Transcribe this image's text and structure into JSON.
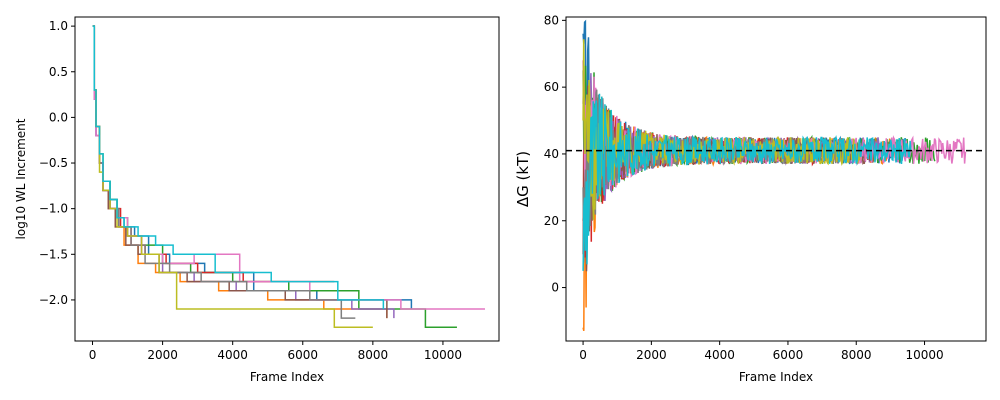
{
  "chart_data": [
    {
      "type": "line",
      "title": "",
      "xlabel": "Frame Index",
      "ylabel": "log10 WL Increment",
      "xlim": [
        -500,
        11600
      ],
      "ylim": [
        -2.45,
        1.1
      ],
      "xticks": [
        0,
        2000,
        4000,
        6000,
        8000,
        10000
      ],
      "yticks": [
        1.0,
        0.5,
        0.0,
        -0.5,
        -1.0,
        -1.5,
        -2.0
      ],
      "ytick_labels": [
        "1.0",
        "0.5",
        "0.0",
        "−0.5",
        "−1.0",
        "−1.5",
        "−2.0"
      ],
      "grid": false,
      "legend": "none",
      "series_style": "step",
      "series": [
        {
          "color": "#1f77b4",
          "x": [
            0,
            50,
            100,
            200,
            300,
            500,
            700,
            900,
            1200,
            1600,
            2200,
            3200,
            4600,
            6400,
            9100
          ],
          "y": [
            1.0,
            0.2,
            -0.2,
            -0.5,
            -0.7,
            -0.9,
            -1.1,
            -1.2,
            -1.3,
            -1.5,
            -1.6,
            -1.7,
            -1.9,
            -2.0,
            -2.1
          ]
        },
        {
          "color": "#ff7f0e",
          "x": [
            0,
            50,
            100,
            200,
            300,
            450,
            650,
            900,
            1300,
            1800,
            2500,
            3600,
            5000,
            6600,
            8400
          ],
          "y": [
            1.0,
            0.3,
            -0.1,
            -0.5,
            -0.8,
            -1.0,
            -1.2,
            -1.4,
            -1.6,
            -1.7,
            -1.8,
            -1.9,
            -2.0,
            -2.1,
            -2.2
          ]
        },
        {
          "color": "#2ca02c",
          "x": [
            0,
            50,
            100,
            200,
            300,
            500,
            700,
            1000,
            1400,
            2000,
            2800,
            4000,
            5600,
            7600,
            9500,
            10400
          ],
          "y": [
            1.0,
            0.3,
            -0.1,
            -0.4,
            -0.7,
            -0.9,
            -1.1,
            -1.3,
            -1.4,
            -1.6,
            -1.7,
            -1.8,
            -1.9,
            -2.1,
            -2.3,
            -2.3
          ]
        },
        {
          "color": "#d62728",
          "x": [
            0,
            50,
            100,
            200,
            300,
            500,
            800,
            1100,
            1500,
            2100,
            3000,
            4300,
            6900
          ],
          "y": [
            1.0,
            0.3,
            -0.1,
            -0.5,
            -0.8,
            -1.0,
            -1.2,
            -1.4,
            -1.5,
            -1.6,
            -1.7,
            -1.8,
            -1.8
          ]
        },
        {
          "color": "#9467bd",
          "x": [
            0,
            50,
            100,
            200,
            300,
            500,
            750,
            1000,
            1400,
            2000,
            2900,
            4100,
            5800,
            7400,
            8600
          ],
          "y": [
            1.0,
            0.2,
            -0.2,
            -0.5,
            -0.8,
            -1.0,
            -1.2,
            -1.3,
            -1.5,
            -1.7,
            -1.8,
            -1.9,
            -2.0,
            -2.1,
            -2.2
          ]
        },
        {
          "color": "#8c564b",
          "x": [
            0,
            50,
            100,
            200,
            300,
            450,
            650,
            950,
            1300,
            1900,
            2700,
            3900,
            5500,
            7700,
            8400
          ],
          "y": [
            1.0,
            0.3,
            -0.1,
            -0.5,
            -0.8,
            -1.0,
            -1.2,
            -1.4,
            -1.5,
            -1.7,
            -1.8,
            -1.9,
            -2.0,
            -2.0,
            -2.2
          ]
        },
        {
          "color": "#e377c2",
          "x": [
            0,
            50,
            100,
            200,
            300,
            500,
            700,
            1000,
            1400,
            2000,
            2900,
            4200,
            6200,
            8800,
            11200
          ],
          "y": [
            1.0,
            0.2,
            -0.2,
            -0.5,
            -0.8,
            -1.0,
            -1.1,
            -1.3,
            -1.5,
            -1.6,
            -1.5,
            -1.8,
            -2.0,
            -2.1,
            -2.1
          ]
        },
        {
          "color": "#7f7f7f",
          "x": [
            0,
            50,
            100,
            200,
            300,
            500,
            750,
            1100,
            1500,
            2200,
            3100,
            4400,
            6200,
            7100,
            7500
          ],
          "y": [
            1.0,
            0.3,
            -0.1,
            -0.5,
            -0.8,
            -1.0,
            -1.2,
            -1.4,
            -1.6,
            -1.7,
            -1.8,
            -1.9,
            -2.0,
            -2.2,
            -2.2
          ]
        },
        {
          "color": "#bcbd22",
          "x": [
            0,
            50,
            100,
            200,
            300,
            500,
            700,
            1000,
            1400,
            1900,
            2400,
            3400,
            5200,
            6900,
            8000
          ],
          "y": [
            1.0,
            0.3,
            -0.1,
            -0.6,
            -0.8,
            -1.0,
            -1.2,
            -1.3,
            -1.5,
            -1.7,
            -2.1,
            -2.1,
            -2.1,
            -2.3,
            -2.3
          ]
        },
        {
          "color": "#17becf",
          "x": [
            0,
            50,
            100,
            200,
            300,
            500,
            700,
            900,
            1300,
            1800,
            2300,
            3500,
            5100,
            7000,
            8300
          ],
          "y": [
            1.0,
            0.3,
            -0.1,
            -0.4,
            -0.7,
            -0.9,
            -1.1,
            -1.2,
            -1.3,
            -1.4,
            -1.5,
            -1.7,
            -1.8,
            -2.0,
            -2.1
          ]
        }
      ]
    },
    {
      "type": "line",
      "title": "",
      "xlabel": "Frame Index",
      "ylabel": "ΔG (kT)",
      "xlim": [
        -500,
        11800
      ],
      "ylim": [
        -16,
        81
      ],
      "xticks": [
        0,
        2000,
        4000,
        6000,
        8000,
        10000
      ],
      "yticks": [
        0,
        20,
        40,
        60,
        80
      ],
      "grid": false,
      "legend": "none",
      "reference_line": {
        "y": 41,
        "style": "dashed",
        "color": "#000000"
      },
      "series_style": "noisy-convergence",
      "series": [
        {
          "color": "#1f77b4",
          "end_x": 9500,
          "start_y": 76
        },
        {
          "color": "#ff7f0e",
          "end_x": 9200,
          "start_y": -12
        },
        {
          "color": "#2ca02c",
          "end_x": 10300,
          "start_y": 65
        },
        {
          "color": "#d62728",
          "end_x": 7200,
          "start_y": 10
        },
        {
          "color": "#9467bd",
          "end_x": 8700,
          "start_y": 55
        },
        {
          "color": "#8c564b",
          "end_x": 8500,
          "start_y": 20
        },
        {
          "color": "#e377c2",
          "end_x": 11200,
          "start_y": 68
        },
        {
          "color": "#7f7f7f",
          "end_x": 7600,
          "start_y": 30
        },
        {
          "color": "#bcbd22",
          "end_x": 8100,
          "start_y": 50
        },
        {
          "color": "#17becf",
          "end_x": 9600,
          "start_y": 5
        }
      ]
    }
  ]
}
